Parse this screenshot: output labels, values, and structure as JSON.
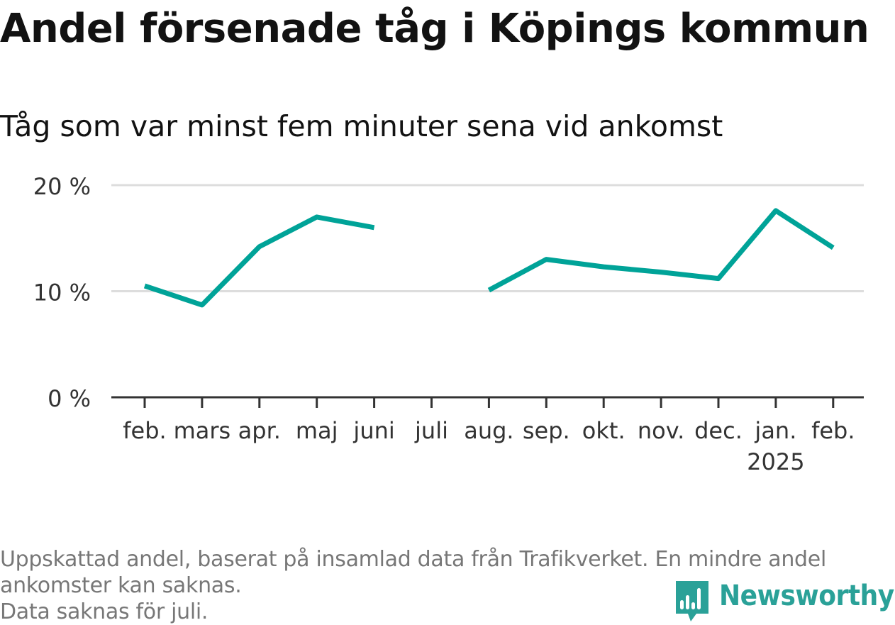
{
  "header": {
    "title": "Andel försenade tåg i Köpings kommun",
    "subtitle": "Tåg som var minst fem minuter sena vid ankomst"
  },
  "chart_data": {
    "type": "line",
    "title": "Andel försenade tåg i Köpings kommun",
    "subtitle": "Tåg som var minst fem minuter sena vid ankomst",
    "categories": [
      "feb.",
      "mars",
      "apr.",
      "maj",
      "juni",
      "juli",
      "aug.",
      "sep.",
      "okt.",
      "nov.",
      "dec.",
      "jan.",
      "feb."
    ],
    "category_sublabels": [
      "",
      "",
      "",
      "",
      "",
      "",
      "",
      "",
      "",
      "",
      "",
      "2025",
      ""
    ],
    "series": [
      {
        "values": [
          10.5,
          8.7,
          14.2,
          17.0,
          16.0,
          null,
          10.1,
          13.0,
          12.3,
          11.8,
          11.2,
          17.6,
          14.1
        ]
      }
    ],
    "ylim": [
      0,
      20
    ],
    "yticks": [
      0,
      10,
      20
    ],
    "ytick_labels": [
      "0 %",
      "10 %",
      "20 %"
    ],
    "grid": true,
    "colors": {
      "line": "#00a398",
      "grid": "#dddddd",
      "axis": "#333333"
    }
  },
  "footer": {
    "note_line1": "Uppskattad andel, baserat på insamlad data från Trafikverket. En mindre andel",
    "note_line2": "ankomster kan saknas.",
    "note_line3": "Data saknas för juli.",
    "brand_name": "Newsworthy",
    "brand_icon": "newsworthy-logo-icon",
    "brand_color": "#2aa198"
  }
}
